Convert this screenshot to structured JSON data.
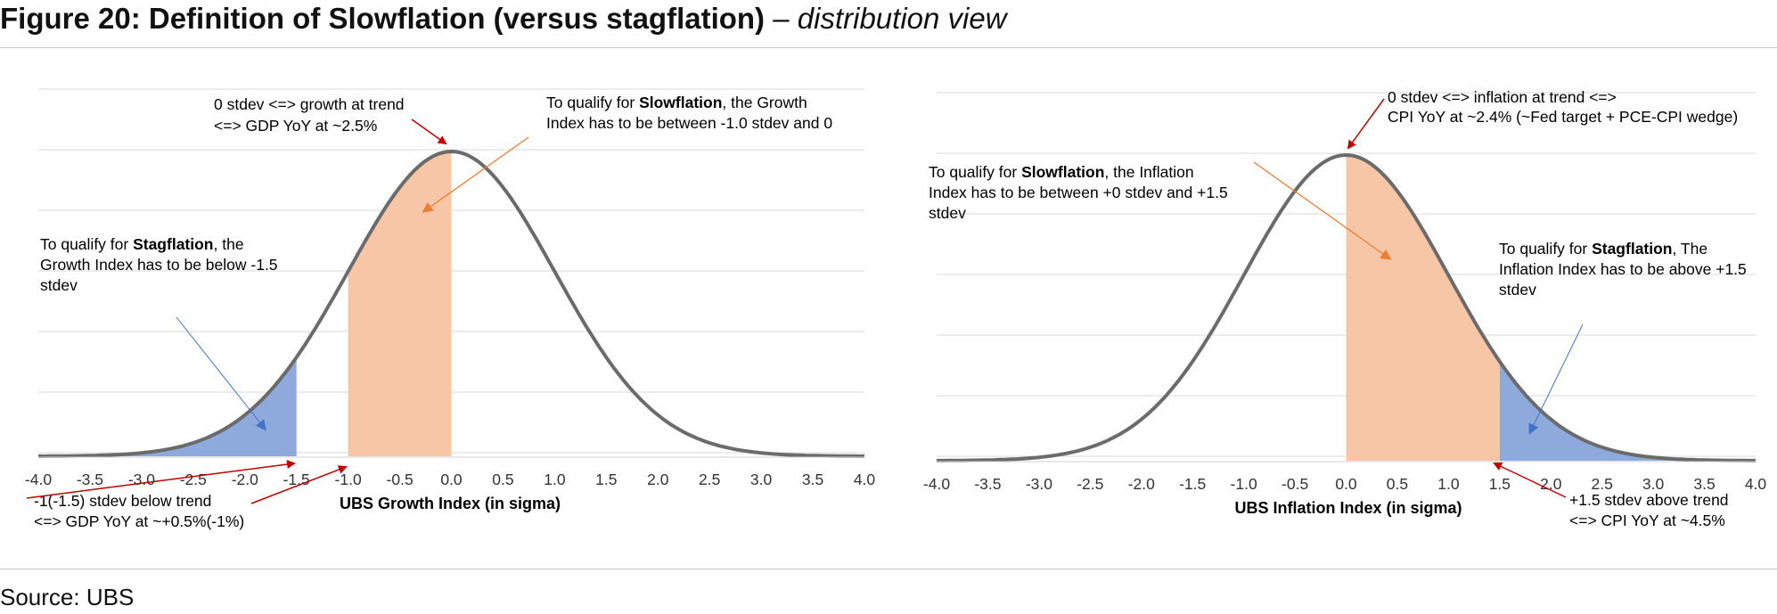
{
  "figure": {
    "title_bold": "Figure 20: Definition of Slowflation (versus stagflation)",
    "title_sep": " – ",
    "title_italic": "distribution view"
  },
  "source": "Source: UBS",
  "colors": {
    "curve": "#6b6b6b",
    "orange_fill": "#f6c6a6",
    "blue_fill": "#8eaadc",
    "grid": "#d9d9d9",
    "red_arrow": "#c00000",
    "orange_arrow": "#ed7d31",
    "blue_arrow": "#4472c4"
  },
  "chart_data": [
    {
      "type": "area",
      "series": [
        {
          "function": "standard normal density",
          "mean": 0,
          "stdev": 1
        }
      ],
      "xlabel": "UBS Growth Index (in sigma)",
      "xlim": [
        -4.0,
        4.0
      ],
      "xticks": [
        "-4.0",
        "-3.5",
        "-3.0",
        "-2.5",
        "-2.0",
        "-1.5",
        "-1.0",
        "-0.5",
        "0.0",
        "0.5",
        "1.0",
        "1.5",
        "2.0",
        "2.5",
        "3.0",
        "3.5",
        "4.0"
      ],
      "grid": true,
      "shaded": [
        {
          "region": "stagflation",
          "from": -4.0,
          "to": -1.5,
          "color": "blue"
        },
        {
          "region": "slowflation",
          "from": -1.0,
          "to": 0.0,
          "color": "orange"
        }
      ],
      "annotations": {
        "trend": [
          "0 stdev <=> growth at trend",
          "<=> GDP YoY at ~2.5%"
        ],
        "slow": {
          "pre": "To qualify for ",
          "bold": "Slowflation",
          "post": ", the Growth",
          "line2": "Index has to be between -1.0 stdev and 0"
        },
        "stag": {
          "pre": "To qualify for ",
          "bold": "Stagflation",
          "post": ", the",
          "line2": "Growth Index has to be below -1.5",
          "line3": "stdev"
        },
        "below": [
          "-1(-1.5) stdev below trend",
          "<=> GDP YoY at ~+0.5%(-1%)"
        ]
      }
    },
    {
      "type": "area",
      "series": [
        {
          "function": "standard normal density",
          "mean": 0,
          "stdev": 1
        }
      ],
      "xlabel": "UBS Inflation Index (in sigma)",
      "xlim": [
        -4.0,
        4.0
      ],
      "xticks": [
        "-4.0",
        "-3.5",
        "-3.0",
        "-2.5",
        "-2.0",
        "-1.5",
        "-1.0",
        "-0.5",
        "0.0",
        "0.5",
        "1.0",
        "1.5",
        "2.0",
        "2.5",
        "3.0",
        "3.5",
        "4.0"
      ],
      "grid": true,
      "shaded": [
        {
          "region": "slowflation",
          "from": 0.0,
          "to": 1.5,
          "color": "orange"
        },
        {
          "region": "stagflation",
          "from": 1.5,
          "to": 4.0,
          "color": "blue"
        }
      ],
      "annotations": {
        "trend": [
          "0 stdev <=> inflation at trend <=>",
          "CPI YoY at ~2.4% (~Fed target + PCE-CPI wedge)"
        ],
        "slow": {
          "pre": "To qualify for ",
          "bold": "Slowflation",
          "post": ", the Inflation",
          "line2": "Index has to be between +0 stdev and +1.5",
          "line3": "stdev"
        },
        "stag": {
          "pre": "To qualify for ",
          "bold": "Stagflation",
          "post": ", The",
          "line2": "Inflation Index has to be above +1.5",
          "line3": "stdev"
        },
        "above": [
          "+1.5 stdev above trend",
          "<=> CPI YoY at ~4.5%"
        ]
      }
    }
  ]
}
